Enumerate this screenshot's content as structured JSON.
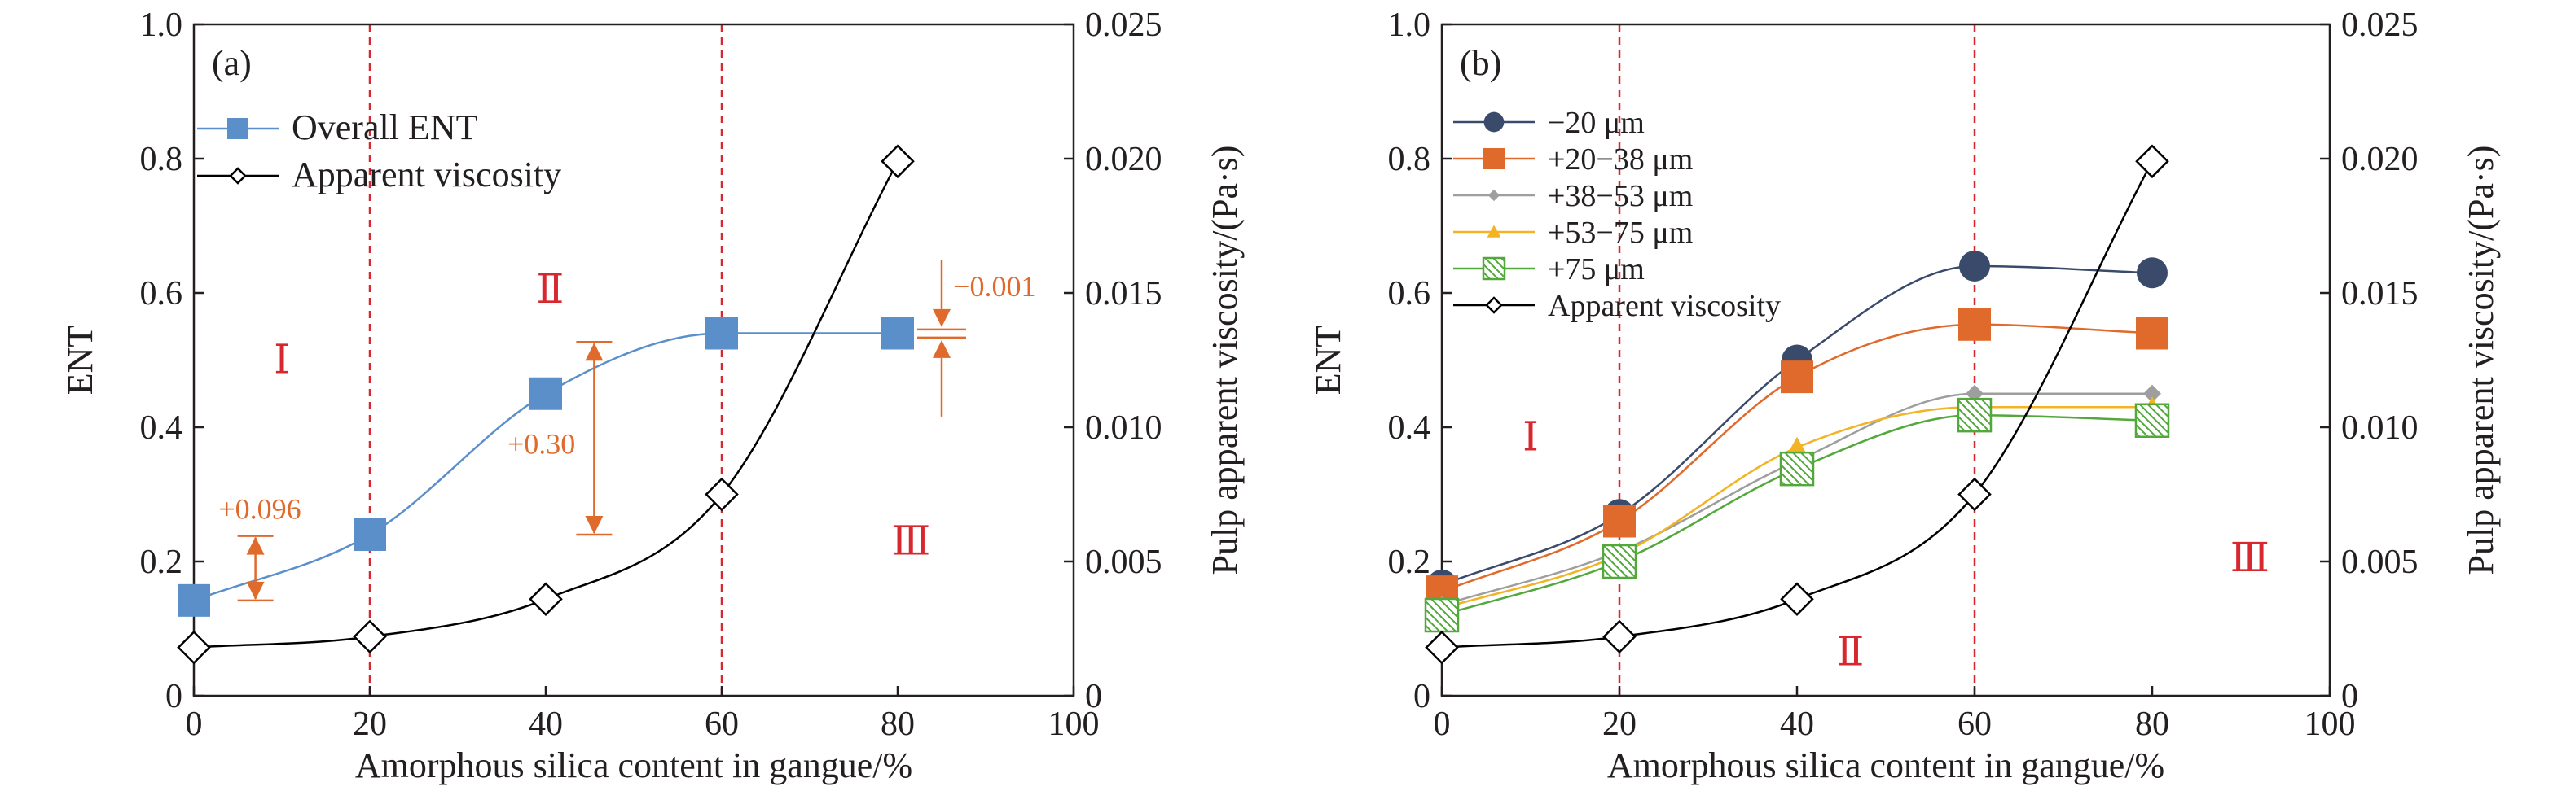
{
  "colors": {
    "axis": "#231f20",
    "region_line": "#d7282f",
    "region_label": "#d7282f",
    "annotation": "#e06a2c",
    "viscosity_line": "#000000"
  },
  "chart_data": [
    {
      "id": "a",
      "type": "line",
      "panel_label": "(a)",
      "xlabel": "Amorphous silica content in gangue/%",
      "ylabel": "ENT",
      "y2label": "Pulp apparent viscosity/(Pa·s)",
      "xlim": [
        0,
        100
      ],
      "ylim": [
        0,
        1.0
      ],
      "y2lim": [
        0,
        0.025
      ],
      "x_ticks": [
        "0",
        "20",
        "40",
        "60",
        "80",
        "100"
      ],
      "x_tick_values": [
        0,
        20,
        40,
        60,
        80,
        100
      ],
      "y_ticks": [
        "0",
        "0.2",
        "0.4",
        "0.6",
        "0.8",
        "1.0"
      ],
      "y_tick_values": [
        0,
        0.2,
        0.4,
        0.6,
        0.8,
        1.0
      ],
      "y2_ticks": [
        "0",
        "0.005",
        "0.010",
        "0.015",
        "0.020",
        "0.025"
      ],
      "y2_tick_values": [
        0,
        0.005,
        0.01,
        0.015,
        0.02,
        0.025
      ],
      "region_lines_x": [
        20,
        60
      ],
      "regions": [
        {
          "label": "Ⅰ",
          "x": 10,
          "y": 0.5
        },
        {
          "label": "Ⅱ",
          "x": 40.5,
          "y": 0.605
        },
        {
          "label": "Ⅲ",
          "x": 81.5,
          "y": 0.23
        }
      ],
      "legend_position": "upper-left",
      "series": [
        {
          "name": "Overall ENT",
          "axis": "left",
          "marker": "square",
          "color": "#5b8fc9",
          "size": 40,
          "x": [
            0,
            20,
            40,
            60,
            80
          ],
          "y": [
            0.142,
            0.24,
            0.45,
            0.54,
            0.54
          ]
        },
        {
          "name": "Apparent viscosity",
          "axis": "right",
          "marker": "diamond",
          "color": "#000000",
          "size": 38,
          "x": [
            0,
            20,
            40,
            60,
            80
          ],
          "y": [
            0.0018,
            0.0022,
            0.0036,
            0.0075,
            0.0199
          ]
        }
      ],
      "annotations": [
        {
          "label": "+0.096",
          "x": 7,
          "y_from": 0.142,
          "y_to": 0.238,
          "label_x": 7.5,
          "label_y": 0.278
        },
        {
          "label": "+0.30",
          "x": 45.5,
          "y_from": 0.24,
          "y_to": 0.527,
          "label_x": 39.5,
          "label_y": 0.375
        },
        {
          "label": "−0.001",
          "x": 85,
          "y_from": 0.54,
          "y_to": 0.539,
          "label_x": 91,
          "label_y": 0.61,
          "style": "inward"
        }
      ]
    },
    {
      "id": "b",
      "type": "line",
      "panel_label": "(b)",
      "xlabel": "Amorphous silica content in gangue/%",
      "ylabel": "ENT",
      "y2label": "Pulp apparent viscosity/(Pa·s)",
      "xlim": [
        0,
        100
      ],
      "ylim": [
        0,
        1.0
      ],
      "y2lim": [
        0,
        0.025
      ],
      "x_ticks": [
        "0",
        "20",
        "40",
        "60",
        "80",
        "100"
      ],
      "x_tick_values": [
        0,
        20,
        40,
        60,
        80,
        100
      ],
      "y_ticks": [
        "0",
        "0.2",
        "0.4",
        "0.6",
        "0.8",
        "1.0"
      ],
      "y_tick_values": [
        0,
        0.2,
        0.4,
        0.6,
        0.8,
        1.0
      ],
      "y2_ticks": [
        "0",
        "0.005",
        "0.010",
        "0.015",
        "0.020",
        "0.025"
      ],
      "y2_tick_values": [
        0,
        0.005,
        0.01,
        0.015,
        0.02,
        0.025
      ],
      "region_lines_x": [
        20,
        60
      ],
      "regions": [
        {
          "label": "Ⅰ",
          "x": 10,
          "y": 0.385
        },
        {
          "label": "Ⅱ",
          "x": 46,
          "y": 0.065
        },
        {
          "label": "Ⅲ",
          "x": 91,
          "y": 0.205
        }
      ],
      "legend_position": "upper-left",
      "series": [
        {
          "name": "−20 μm",
          "axis": "left",
          "marker": "circle",
          "color": "#3a4a6b",
          "size": 38,
          "x": [
            0,
            20,
            40,
            60,
            80
          ],
          "y": [
            0.165,
            0.27,
            0.5,
            0.64,
            0.63
          ]
        },
        {
          "name": "+20−38 μm",
          "axis": "left",
          "marker": "square",
          "color": "#e06a2c",
          "size": 40,
          "x": [
            0,
            20,
            40,
            60,
            80
          ],
          "y": [
            0.155,
            0.26,
            0.475,
            0.553,
            0.54
          ]
        },
        {
          "name": "+38−53 μm",
          "axis": "left",
          "marker": "diamond",
          "color": "#9e9e9e",
          "size": 22,
          "x": [
            0,
            20,
            40,
            60,
            80
          ],
          "y": [
            0.135,
            0.215,
            0.35,
            0.45,
            0.45
          ]
        },
        {
          "name": "+53−75 μm",
          "axis": "left",
          "marker": "triangle",
          "color": "#f2b325",
          "size": 26,
          "x": [
            0,
            20,
            40,
            60,
            80
          ],
          "y": [
            0.13,
            0.21,
            0.37,
            0.43,
            0.43
          ]
        },
        {
          "name": "+75 μm",
          "axis": "left",
          "marker": "hatched-square",
          "color": "#52a83a",
          "size": 40,
          "x": [
            0,
            20,
            40,
            60,
            80
          ],
          "y": [
            0.12,
            0.2,
            0.338,
            0.418,
            0.41
          ]
        },
        {
          "name": "Apparent viscosity",
          "axis": "right",
          "marker": "diamond",
          "color": "#000000",
          "size": 38,
          "x": [
            0,
            20,
            40,
            60,
            80
          ],
          "y": [
            0.0018,
            0.0022,
            0.0036,
            0.0075,
            0.0199
          ]
        }
      ]
    }
  ]
}
